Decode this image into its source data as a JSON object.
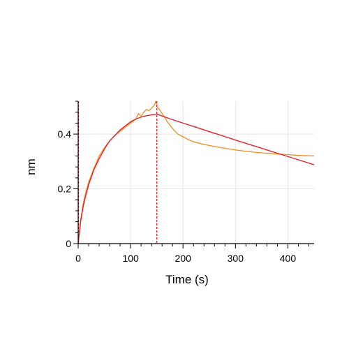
{
  "chart_data": {
    "type": "line",
    "title": "",
    "xlabel": "Time (s)",
    "ylabel": "nm",
    "xlim": [
      0,
      450
    ],
    "ylim": [
      0,
      0.52
    ],
    "x_ticks": [
      0,
      100,
      200,
      300,
      400
    ],
    "y_ticks": [
      0,
      0.2,
      0.4
    ],
    "x_tick_labels": [
      "0",
      "100",
      "200",
      "300",
      "400"
    ],
    "y_tick_labels": [
      "0",
      "0.2",
      "0.4"
    ],
    "grid": true,
    "legend": "none",
    "dissociation_start_x": 150,
    "series": [
      {
        "color": "#f28c1e",
        "style": "measured",
        "points": [
          [
            0,
            0.0
          ],
          [
            5,
            0.09
          ],
          [
            10,
            0.15
          ],
          [
            15,
            0.19
          ],
          [
            20,
            0.225
          ],
          [
            30,
            0.275
          ],
          [
            40,
            0.32
          ],
          [
            50,
            0.35
          ],
          [
            60,
            0.375
          ],
          [
            70,
            0.395
          ],
          [
            80,
            0.41
          ],
          [
            90,
            0.425
          ],
          [
            100,
            0.44
          ],
          [
            110,
            0.455
          ],
          [
            115,
            0.475
          ],
          [
            120,
            0.465
          ],
          [
            125,
            0.48
          ],
          [
            130,
            0.49
          ],
          [
            135,
            0.485
          ],
          [
            140,
            0.495
          ],
          [
            145,
            0.505
          ],
          [
            148,
            0.52
          ],
          [
            150,
            0.5
          ],
          [
            155,
            0.49
          ],
          [
            160,
            0.475
          ],
          [
            170,
            0.445
          ],
          [
            180,
            0.42
          ],
          [
            190,
            0.4
          ],
          [
            200,
            0.39
          ],
          [
            210,
            0.38
          ],
          [
            220,
            0.372
          ],
          [
            240,
            0.362
          ],
          [
            260,
            0.355
          ],
          [
            280,
            0.348
          ],
          [
            300,
            0.342
          ],
          [
            320,
            0.337
          ],
          [
            340,
            0.333
          ],
          [
            360,
            0.33
          ],
          [
            380,
            0.327
          ],
          [
            400,
            0.325
          ],
          [
            420,
            0.322
          ],
          [
            450,
            0.32
          ]
        ]
      },
      {
        "color": "#e52229",
        "style": "fit",
        "points": [
          [
            0,
            0.0
          ],
          [
            5,
            0.085
          ],
          [
            10,
            0.14
          ],
          [
            15,
            0.18
          ],
          [
            20,
            0.215
          ],
          [
            30,
            0.27
          ],
          [
            40,
            0.31
          ],
          [
            50,
            0.345
          ],
          [
            60,
            0.375
          ],
          [
            70,
            0.395
          ],
          [
            80,
            0.415
          ],
          [
            90,
            0.43
          ],
          [
            100,
            0.445
          ],
          [
            110,
            0.455
          ],
          [
            120,
            0.462
          ],
          [
            130,
            0.467
          ],
          [
            140,
            0.47
          ],
          [
            150,
            0.473
          ],
          [
            175,
            0.456
          ],
          [
            200,
            0.44
          ],
          [
            225,
            0.425
          ],
          [
            250,
            0.409
          ],
          [
            275,
            0.394
          ],
          [
            300,
            0.378
          ],
          [
            325,
            0.363
          ],
          [
            350,
            0.348
          ],
          [
            375,
            0.333
          ],
          [
            400,
            0.318
          ],
          [
            425,
            0.303
          ],
          [
            450,
            0.288
          ]
        ]
      }
    ]
  }
}
